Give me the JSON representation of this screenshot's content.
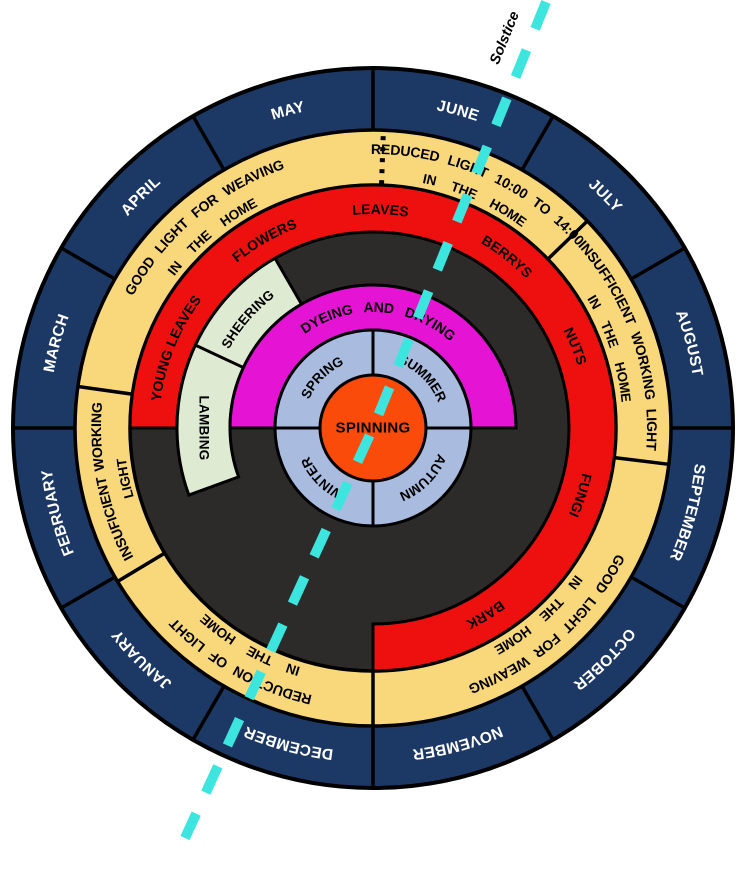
{
  "center_label": "SPINNING",
  "solstice": {
    "label": "Solstice"
  },
  "months": [
    {
      "label": "JUNE",
      "start": 0,
      "end": 30
    },
    {
      "label": "JULY",
      "start": 30,
      "end": 60
    },
    {
      "label": "AUGUST",
      "start": 60,
      "end": 90
    },
    {
      "label": "SEPTEMBER",
      "start": 90,
      "end": 120
    },
    {
      "label": "OCTOBER",
      "start": 120,
      "end": 150
    },
    {
      "label": "NOVEMBER",
      "start": 150,
      "end": 180
    },
    {
      "label": "DECEMBER",
      "start": 180,
      "end": 210
    },
    {
      "label": "JANUARY",
      "start": 210,
      "end": 240
    },
    {
      "label": "FEBRUARY",
      "start": 240,
      "end": 270
    },
    {
      "label": "MARCH",
      "start": 270,
      "end": 300
    },
    {
      "label": "APRIL",
      "start": 300,
      "end": 330
    },
    {
      "label": "MAY",
      "start": 330,
      "end": 360
    }
  ],
  "light_ring": {
    "segments": [
      {
        "outer": "REDUCED LIGHT 10:00 TO 14:00",
        "inner": "IN THE HOME",
        "start": 2,
        "end": 46,
        "boundary": "dotted"
      },
      {
        "outer": "INSUFFICIENT WORKING LIGHT",
        "inner": "IN THE HOME",
        "start": 46,
        "end": 97,
        "boundary": "solid"
      },
      {
        "outer": "GOOD LIGHT FOR WEAVING",
        "inner": "IN THE HOME",
        "start": 97,
        "end": 180,
        "boundary": "solid"
      },
      {
        "outer": "REDUCTION OF LIGHT",
        "inner": "IN THE HOME",
        "start": 180,
        "end": 239,
        "boundary": "solid"
      },
      {
        "outer": "INSUFICIENT WORKING",
        "inner": "LIGHT",
        "start": 239,
        "end": 278,
        "boundary": "solid"
      },
      {
        "outer": "GOOD LIGHT FOR WEAVING",
        "inner": "IN THE HOME",
        "start": 278,
        "end": 362,
        "boundary": "solid"
      }
    ]
  },
  "forage_ring": {
    "start": 270,
    "end": 180,
    "items": [
      {
        "label": "YOUNG LEAVES",
        "angle": 292
      },
      {
        "label": "FLOWERS",
        "angle": 330
      },
      {
        "label": "LEAVES",
        "angle": 2
      },
      {
        "label": "BERRYS",
        "angle": 38
      },
      {
        "label": "NUTS",
        "angle": 68
      },
      {
        "label": "FUNGI",
        "angle": 108
      },
      {
        "label": "BARK",
        "angle": 149
      }
    ]
  },
  "sheep_arc": {
    "start": 250,
    "end": 330,
    "divider": 295,
    "items": [
      {
        "label": "LAMBING",
        "angle": 270,
        "orientation": "radial"
      },
      {
        "label": "SHEERING",
        "angle": 311,
        "orientation": "tangent"
      }
    ]
  },
  "dye_arc": {
    "label": "DYEING AND DRYING",
    "start": 270,
    "end": 90,
    "label_angle": 3
  },
  "seasons": [
    {
      "label": "SPRING",
      "angle": 315
    },
    {
      "label": "SUMMER",
      "angle": 45
    },
    {
      "label": "AUTUMN",
      "angle": 135
    },
    {
      "label": "WINTER",
      "angle": 225
    }
  ],
  "colors": {
    "month_ring": "#1C3966",
    "light_ring": "#F9D77B",
    "forage_ring": "#EE0F0F",
    "inner_field": "#2D2B2A",
    "sheep_arc": "#DFEAD2",
    "dye_arc": "#E513D4",
    "season_ring": "#A9BCDF",
    "center": "#FB4B0B",
    "solstice_line": "#3CE6DE",
    "outline": "#000000",
    "month_text": "#FFFFFF",
    "label_text": "#000000"
  }
}
